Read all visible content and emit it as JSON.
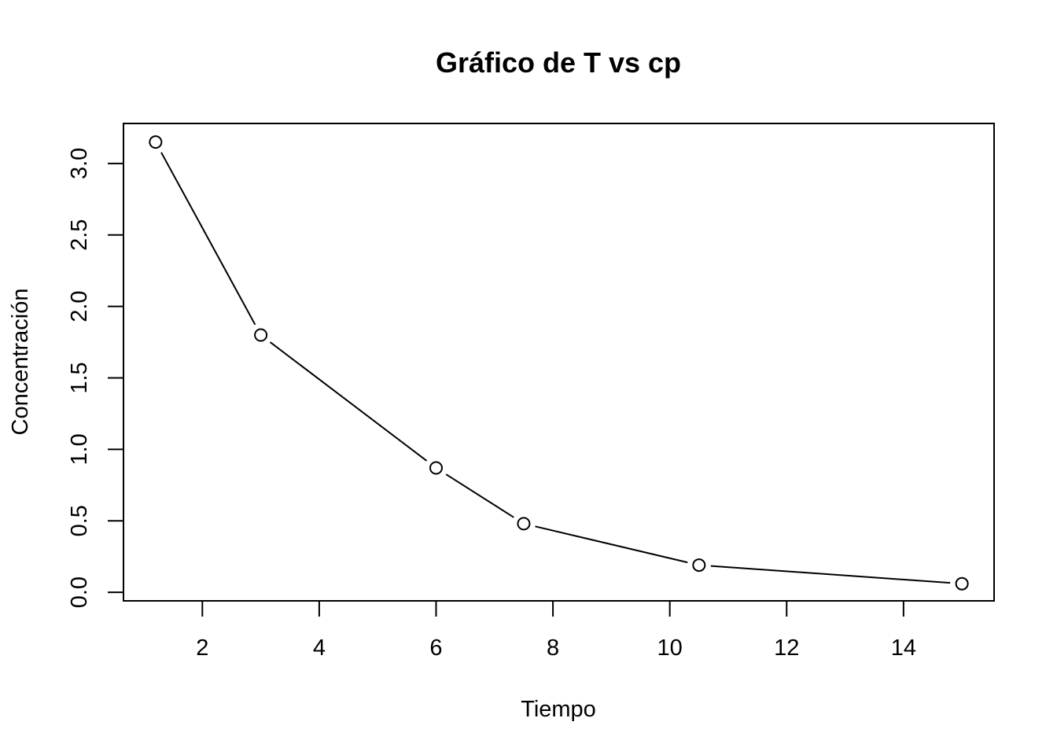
{
  "chart_data": {
    "type": "line",
    "title": "Gráfico de T vs cp",
    "xlabel": "Tiempo",
    "ylabel": "Concentración",
    "x": [
      1.2,
      3,
      6,
      7.5,
      10.5,
      15
    ],
    "series": [
      {
        "values": [
          3.15,
          1.8,
          0.87,
          0.48,
          0.19,
          0.06
        ]
      }
    ],
    "xlim": [
      0.65,
      15.55
    ],
    "ylim": [
      -0.06,
      3.28
    ],
    "xticks": [
      2,
      4,
      6,
      8,
      10,
      12,
      14
    ],
    "yticks": [
      0.0,
      0.5,
      1.0,
      1.5,
      2.0,
      2.5,
      3.0
    ],
    "xtick_labels": [
      "2",
      "4",
      "6",
      "8",
      "10",
      "12",
      "14"
    ],
    "ytick_labels": [
      "0.0",
      "0.5",
      "1.0",
      "1.5",
      "2.0",
      "2.5",
      "3.0"
    ],
    "marker": "open-circle",
    "line_style": "solid",
    "grid": false,
    "legend": false,
    "colors": {
      "line": "#000000",
      "marker_fill": "#ffffff",
      "background": "#ffffff"
    }
  }
}
